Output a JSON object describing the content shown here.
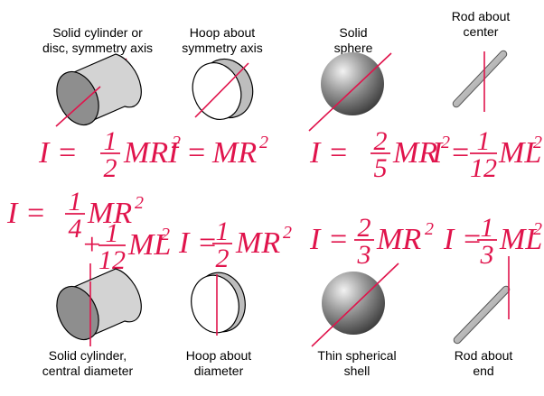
{
  "colors": {
    "accent": "#e0144c",
    "shape_dark": "#8a8a8a",
    "shape_light": "#cfcfcf"
  },
  "captions": {
    "solid_cylinder_axis": [
      "Solid cylinder or",
      "disc, symmetry axis"
    ],
    "hoop_symmetry": [
      "Hoop about",
      "symmetry axis"
    ],
    "solid_sphere": [
      "Solid",
      "sphere"
    ],
    "rod_center": [
      "Rod about",
      "center"
    ],
    "solid_cylinder_diameter": [
      "Solid cylinder,",
      "central diameter"
    ],
    "hoop_diameter": [
      "Hoop about",
      "diameter"
    ],
    "thin_shell": [
      "Thin spherical",
      "shell"
    ],
    "rod_end": [
      "Rod about",
      "end"
    ]
  },
  "formulas": {
    "solid_cylinder_axis": {
      "lhs": "I =",
      "num": "1",
      "den": "2",
      "body": "MR",
      "exp": "2"
    },
    "hoop_symmetry": {
      "lhs": "I =",
      "body": "MR",
      "exp": "2"
    },
    "solid_sphere": {
      "lhs": "I =",
      "num": "2",
      "den": "5",
      "body": "MR",
      "exp": "2"
    },
    "rod_center": {
      "lhs": "I =",
      "num": "1",
      "den": "12",
      "body": "ML",
      "exp": "2"
    },
    "solid_cylinder_diameter": {
      "lhs": "I =",
      "num": "1",
      "den": "4",
      "body": "MR",
      "exp": "2",
      "plus": "+",
      "num2": "1",
      "den2": "12",
      "body2": "ML",
      "exp2": "2"
    },
    "hoop_diameter": {
      "lhs": "I =",
      "num": "1",
      "den": "2",
      "body": "MR",
      "exp": "2"
    },
    "thin_shell": {
      "lhs": "I =",
      "num": "2",
      "den": "3",
      "body": "MR",
      "exp": "2"
    },
    "rod_end": {
      "lhs": "I =",
      "num": "1",
      "den": "3",
      "body": "ML",
      "exp": "2"
    }
  }
}
